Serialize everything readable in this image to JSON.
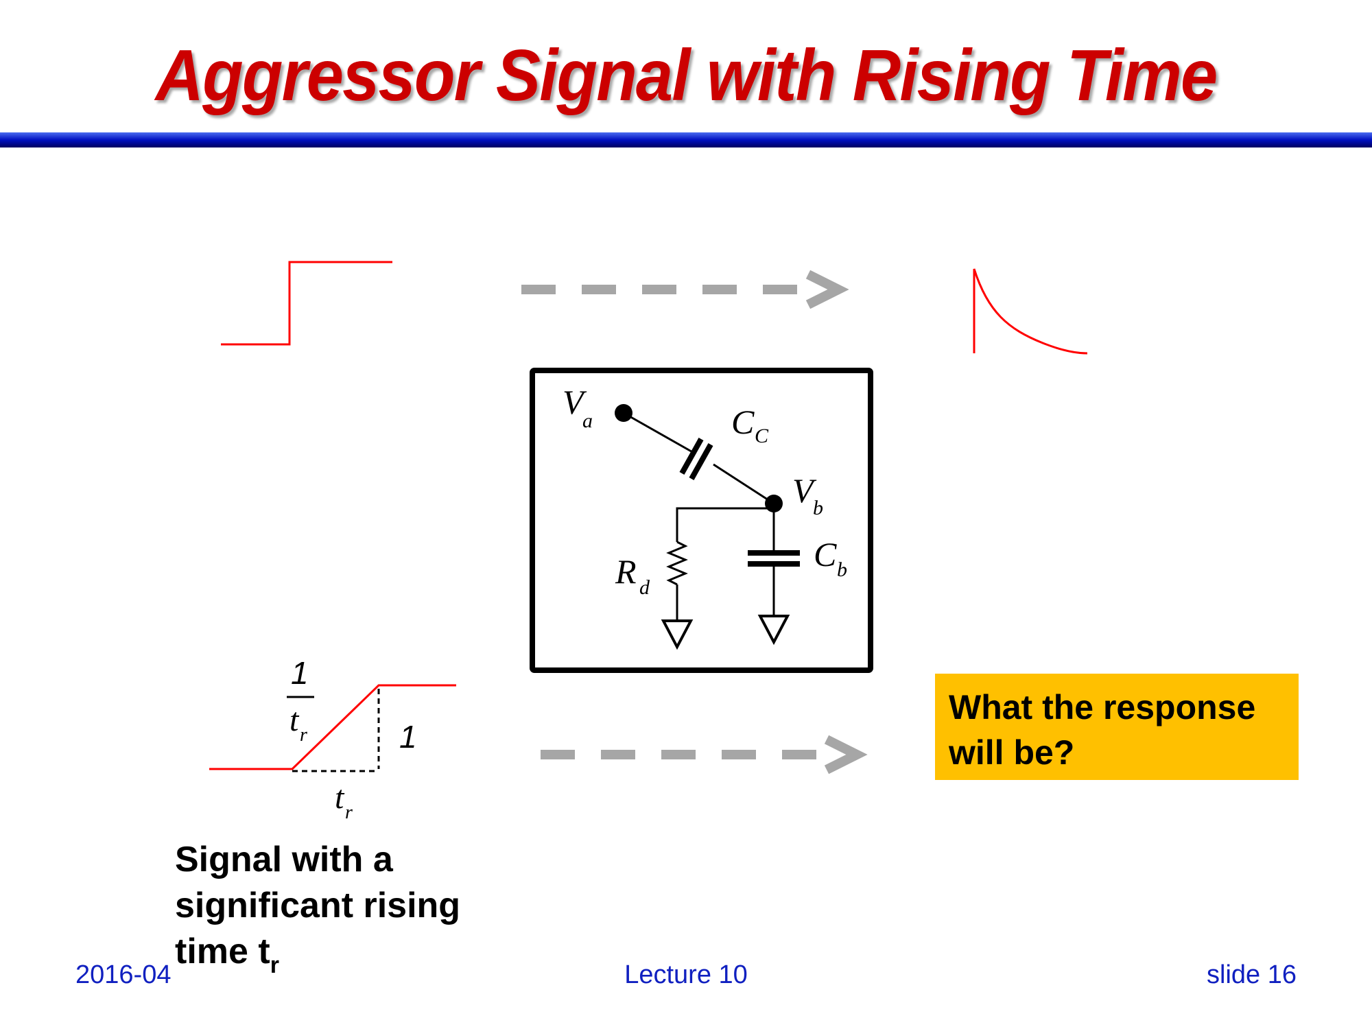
{
  "slide": {
    "title": "Aggressor Signal with Rising Time",
    "question": "What the response will be?",
    "caption": "Signal with a significant rising time t",
    "caption_subscript": "r",
    "footer": {
      "date": "2016-04",
      "lecture": "Lecture 10",
      "slide": "slide 16"
    }
  },
  "circuit": {
    "node_a": "V",
    "node_a_sub": "a",
    "node_b": "V",
    "node_b_sub": "b",
    "coupling_cap": "C",
    "coupling_cap_sub": "C",
    "load_cap": "C",
    "load_cap_sub": "b",
    "resistor": "R",
    "resistor_sub": "d"
  },
  "ramp_labels": {
    "slope_numerator": "1",
    "slope_denominator": "t",
    "slope_denominator_sub": "r",
    "height": "1",
    "width": "t",
    "width_sub": "r"
  },
  "colors": {
    "title": "#cc0000",
    "waveform": "#ff0000",
    "arrow": "#a6a6a6",
    "answer_box": "#ffc000",
    "footer": "#1020c0"
  }
}
